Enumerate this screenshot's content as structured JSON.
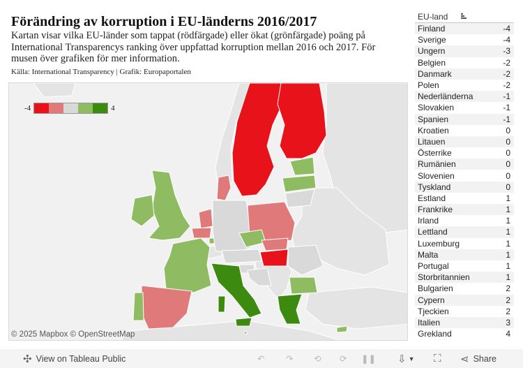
{
  "header": {
    "title": "Förändring av korruption i EU-länderns 2016/2017",
    "description": "Kartan visar vilka EU-länder som tappat (rödfärgade) eller ökat (grönfärgade) poäng på International Transparencys ranking över uppfattad korruption mellan 2016 och 2017. För musen över grafiken för mer information.",
    "source": "Källa: International Transparency | Grafik: Europaportalen"
  },
  "legend": {
    "min_label": "-4",
    "max_label": "4",
    "colors": [
      "#e8131a",
      "#e07a7a",
      "#d9d9d9",
      "#8fbc62",
      "#3c8a0f"
    ]
  },
  "map": {
    "attribution": "© 2025 Mapbox  © OpenStreetMap",
    "colors": {
      "background": "#f1f1f1",
      "non_eu_land": "#e4e4e4",
      "strong_negative": "#e8131a",
      "negative": "#e07a7a",
      "neutral": "#d9d9d9",
      "positive": "#8fbc62",
      "strong_positive": "#3c8a0f"
    }
  },
  "panel": {
    "column_header": "EU-land",
    "sort_icon": "sort-descending-icon",
    "rows": [
      {
        "country": "Finland",
        "value": "-4"
      },
      {
        "country": "Sverige",
        "value": "-4"
      },
      {
        "country": "Ungern",
        "value": "-3"
      },
      {
        "country": "Belgien",
        "value": "-2"
      },
      {
        "country": "Danmark",
        "value": "-2"
      },
      {
        "country": "Polen",
        "value": "-2"
      },
      {
        "country": "Nederländerna",
        "value": "-1"
      },
      {
        "country": "Slovakien",
        "value": "-1"
      },
      {
        "country": "Spanien",
        "value": "-1"
      },
      {
        "country": "Kroatien",
        "value": "0"
      },
      {
        "country": "Litauen",
        "value": "0"
      },
      {
        "country": "Österrike",
        "value": "0"
      },
      {
        "country": "Rumänien",
        "value": "0"
      },
      {
        "country": "Slovenien",
        "value": "0"
      },
      {
        "country": "Tyskland",
        "value": "0"
      },
      {
        "country": "Estland",
        "value": "1"
      },
      {
        "country": "Frankrike",
        "value": "1"
      },
      {
        "country": "Irland",
        "value": "1"
      },
      {
        "country": "Lettland",
        "value": "1"
      },
      {
        "country": "Luxemburg",
        "value": "1"
      },
      {
        "country": "Malta",
        "value": "1"
      },
      {
        "country": "Portugal",
        "value": "1"
      },
      {
        "country": "Storbritannien",
        "value": "1"
      },
      {
        "country": "Bulgarien",
        "value": "2"
      },
      {
        "country": "Cypern",
        "value": "2"
      },
      {
        "country": "Tjeckien",
        "value": "2"
      },
      {
        "country": "Italien",
        "value": "3"
      },
      {
        "country": "Grekland",
        "value": "4"
      }
    ]
  },
  "toolbar": {
    "view_label": "View on Tableau Public",
    "share_label": "Share",
    "icons": [
      "tableau-logo-icon",
      "undo-icon",
      "redo-icon",
      "revert-icon",
      "refresh-icon",
      "pause-icon",
      "download-icon",
      "fullscreen-icon",
      "share-icon"
    ]
  }
}
